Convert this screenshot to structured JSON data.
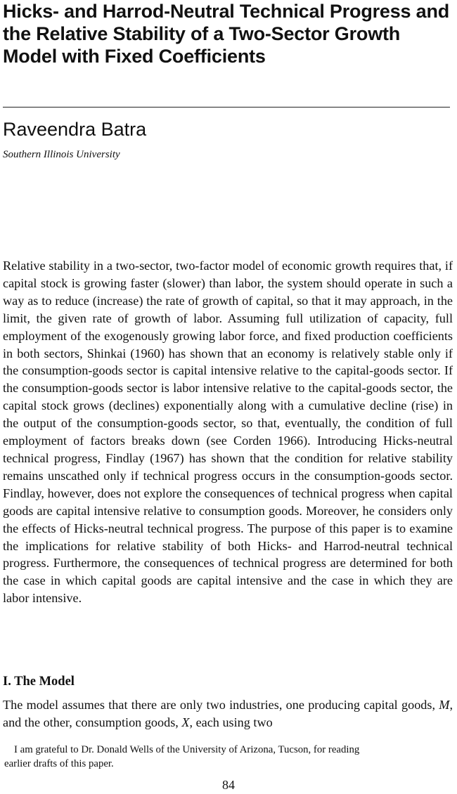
{
  "paper": {
    "title": "Hicks- and Harrod-Neutral Technical Progress and the Relative Stability of a Two-Sector Growth Model with Fixed Coefficients",
    "author": "Raveendra Batra",
    "affiliation": "Southern Illinois University",
    "abstract": "Relative stability in a two-sector, two-factor model of economic growth requires that, if capital stock is growing faster (slower) than labor, the system should operate in such a way as to reduce (increase) the rate of growth of capital, so that it may approach, in the limit, the given rate of growth of labor. Assuming full utilization of capacity, full employment of the exogenously growing labor force, and fixed production coefficients in both sectors, Shinkai (1960) has shown that an economy is relatively stable only if the consumption-goods sector is capital intensive relative to the capital-goods sector. If the consumption-goods sector is labor intensive relative to the capital-goods sector, the capital stock grows (declines) exponentially along with a cumulative decline (rise) in the output of the consumption-goods sector, so that, eventually, the condition of full employment of factors breaks down (see Corden 1966). Introducing Hicks-neutral technical progress, Findlay (1967) has shown that the condition for relative stability remains unscathed only if technical progress occurs in the consumption-goods sector. Findlay, however, does not explore the consequences of technical progress when capital goods are capital intensive relative to consumption goods. Moreover, he considers only the effects of Hicks-neutral technical progress. The purpose of this paper is to examine the implications for relative stability of both Hicks- and Harrod-neutral technical progress. Furthermore, the consequences of technical progress are determined for both the case in which capital goods are capital intensive and the case in which they are labor intensive.",
    "section_heading": "I. The Model",
    "body": {
      "text_1": "The model assumes that there are only two industries, one producing capital goods, ",
      "var_m": "M",
      "text_2": ", and the other, consumption goods, ",
      "var_x": "X",
      "text_3": ", each using two"
    },
    "footnote": {
      "line_1": "I am grateful to Dr. Donald Wells of the University of Arizona, Tucson, for reading",
      "line_2": "earlier drafts of this paper."
    },
    "page_number": "84"
  }
}
